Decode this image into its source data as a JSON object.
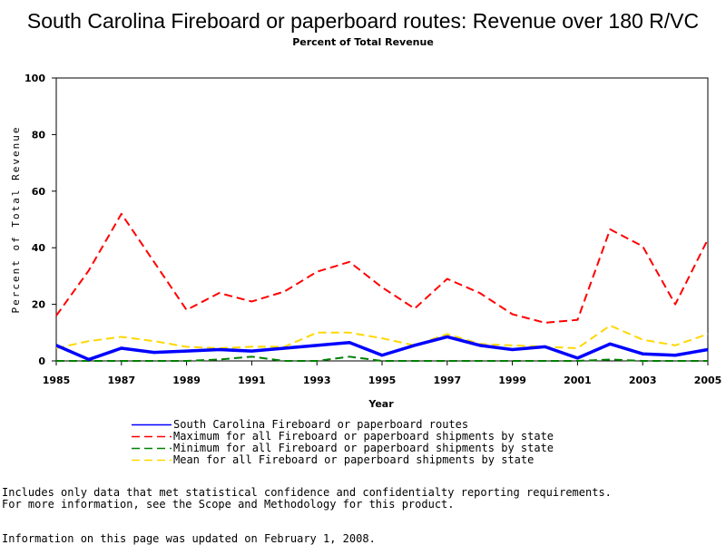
{
  "chart_data": {
    "type": "line",
    "title": "South Carolina Fireboard or paperboard routes: Revenue over 180 R/VC",
    "subtitle": "Percent of Total Revenue",
    "xlabel": "Year",
    "ylabel": "Percent of Total Revenue",
    "xlim": [
      1985,
      2005
    ],
    "ylim": [
      0,
      100
    ],
    "x_ticks": [
      "1985",
      "1987",
      "1989",
      "1991",
      "1993",
      "1995",
      "1997",
      "1999",
      "2001",
      "2003",
      "2005"
    ],
    "y_ticks": [
      "0",
      "20",
      "40",
      "60",
      "80",
      "100"
    ],
    "grid": false,
    "legend_position": "bottom",
    "x": [
      1985,
      1986,
      1987,
      1988,
      1989,
      1990,
      1991,
      1992,
      1993,
      1994,
      1995,
      1996,
      1997,
      1998,
      1999,
      2000,
      2001,
      2002,
      2003,
      2004,
      2005
    ],
    "series": [
      {
        "name": "South Carolina Fireboard or paperboard routes",
        "color": "#0000ff",
        "style": "solid",
        "values": [
          5.5,
          0.5,
          4.5,
          3,
          3.5,
          4,
          3.5,
          4.5,
          5.5,
          6.5,
          2,
          5.5,
          8.5,
          5.5,
          4,
          5,
          1,
          6,
          2.5,
          2,
          4
        ]
      },
      {
        "name": "Maximum for all Fireboard or paperboard shipments by state",
        "color": "#ff0000",
        "style": "dashed",
        "values": [
          16,
          32,
          52,
          35,
          18,
          24,
          21,
          24.5,
          31.5,
          35,
          26,
          18.5,
          29,
          24,
          16.5,
          13.5,
          14.5,
          46.5,
          40.5,
          20,
          43
        ]
      },
      {
        "name": "Minimum for all Fireboard or paperboard shipments by state",
        "color": "#008000",
        "style": "dashed",
        "values": [
          0,
          0,
          0,
          0,
          0,
          0.5,
          1.5,
          0,
          0,
          1.5,
          0,
          0,
          0,
          0,
          0,
          0,
          0,
          0.5,
          0,
          0,
          0
        ]
      },
      {
        "name": "Mean for all Fireboard or paperboard shipments by state",
        "color": "#ffd700",
        "style": "dashed",
        "values": [
          4.5,
          7,
          8.5,
          7,
          5,
          4.5,
          5,
          5,
          10,
          10,
          8,
          5.5,
          9.5,
          6,
          5.5,
          5,
          4.5,
          12.5,
          7.5,
          5.5,
          9.5
        ]
      }
    ]
  },
  "notes": {
    "line1": "Includes only data that met statistical confidence and confidentialty reporting requirements.",
    "line2": "For more information, see the Scope and Methodology for this product.",
    "updated": "Information on this page was updated on February 1, 2008."
  }
}
